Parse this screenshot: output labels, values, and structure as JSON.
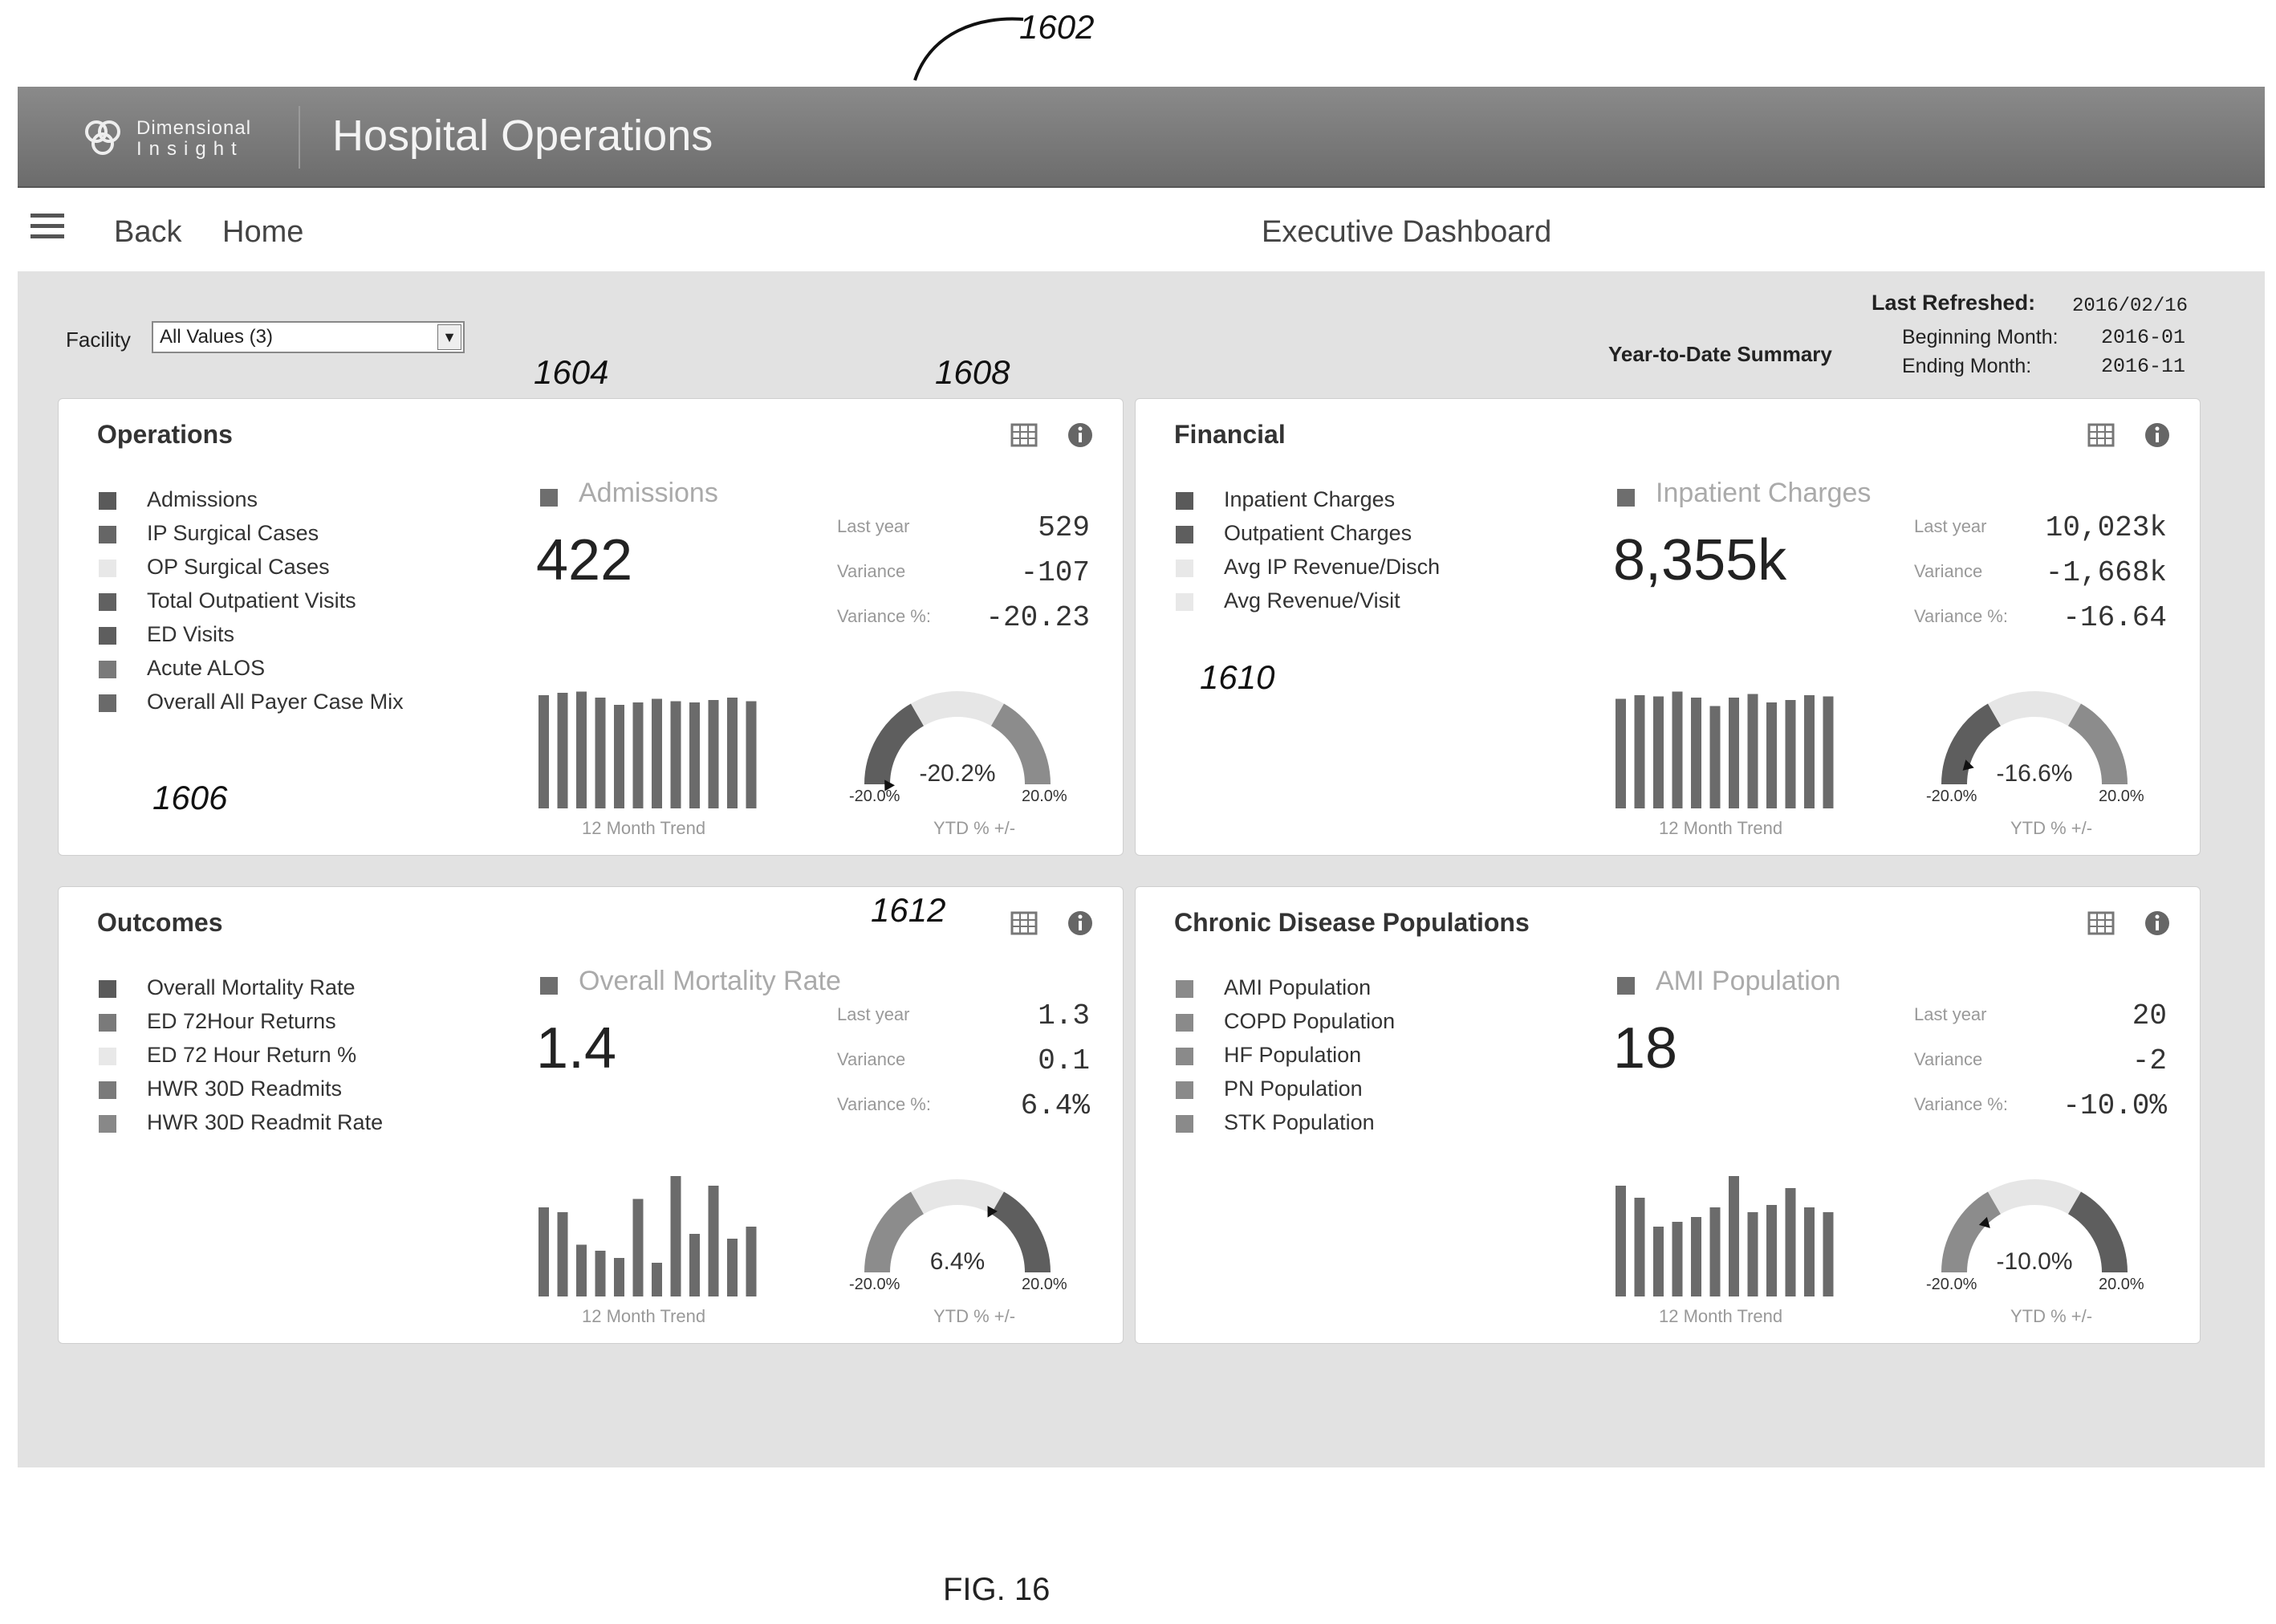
{
  "callouts": {
    "c1602": "1602",
    "c1604": "1604",
    "c1606": "1606",
    "c1608": "1608",
    "c1610": "1610",
    "c1612": "1612"
  },
  "figure_label": "FIG. 16",
  "header": {
    "logo_line1": "Dimensional",
    "logo_line2": "Insight",
    "app_title": "Hospital Operations"
  },
  "nav": {
    "back": "Back",
    "home": "Home",
    "page_title": "Executive Dashboard"
  },
  "filters": {
    "facility_label": "Facility",
    "facility_value": "All Values (3)"
  },
  "summary": {
    "title": "Year-to-Date Summary",
    "last_refreshed_label": "Last Refreshed:",
    "last_refreshed": "2016/02/16",
    "beginning_label": "Beginning Month:",
    "beginning": "2016-01",
    "ending_label": "Ending Month:",
    "ending": "2016-11"
  },
  "common": {
    "last_year_label": "Last year",
    "variance_label": "Variance",
    "variance_pct_label": "Variance %:",
    "trend_caption": "12 Month Trend",
    "ytd_caption": "YTD % +/-",
    "gauge_min": "-20.0%",
    "gauge_max": "20.0%",
    "table_icon": "table-icon",
    "info_icon": "info-icon"
  },
  "cards": [
    {
      "title": "Operations",
      "legend": [
        "Admissions",
        "IP Surgical Cases",
        "OP Surgical Cases",
        "Total Outpatient Visits",
        "ED Visits",
        "Acute ALOS",
        "Overall All Payer Case Mix"
      ],
      "legend_colors": [
        "#5a5a5a",
        "#666666",
        "#e8e8e8",
        "#616161",
        "#5e5e5e",
        "#7a7a7a",
        "#6a6a6a"
      ],
      "selected": "Admissions",
      "value": "422",
      "last_year": "529",
      "variance": "-107",
      "variance_pct": "-20.23",
      "ytd": "-20.2%",
      "ytd_value": -20.2,
      "trend": [
        0.94,
        0.96,
        0.97,
        0.92,
        0.86,
        0.88,
        0.91,
        0.89,
        0.88,
        0.9,
        0.92,
        0.89
      ],
      "gauge_style": "neg"
    },
    {
      "title": "Financial",
      "legend": [
        "Inpatient Charges",
        "Outpatient Charges",
        "Avg IP Revenue/Disch",
        "Avg Revenue/Visit"
      ],
      "legend_colors": [
        "#5a5a5a",
        "#5e5e5e",
        "#e8e8e8",
        "#e8e8e8"
      ],
      "selected": "Inpatient Charges",
      "value": "8,355k",
      "last_year": "10,023k",
      "variance": "-1,668k",
      "variance_pct": "-16.64",
      "ytd": "-16.6%",
      "ytd_value": -16.6,
      "trend": [
        0.91,
        0.94,
        0.93,
        0.97,
        0.92,
        0.85,
        0.92,
        0.95,
        0.88,
        0.9,
        0.94,
        0.93
      ],
      "gauge_style": "neg"
    },
    {
      "title": "Outcomes",
      "legend": [
        "Overall Mortality Rate",
        "ED 72Hour Returns",
        "ED 72 Hour Return %",
        "HWR 30D Readmits",
        "HWR 30D Readmit Rate"
      ],
      "legend_colors": [
        "#5a5a5a",
        "#7a7a7a",
        "#e8e8e8",
        "#7a7a7a",
        "#888888"
      ],
      "selected": "Overall Mortality Rate",
      "value": "1.4",
      "last_year": "1.3",
      "variance": "0.1",
      "variance_pct": "6.4%",
      "ytd": "6.4%",
      "ytd_value": 6.4,
      "trend": [
        0.74,
        0.7,
        0.43,
        0.38,
        0.32,
        0.81,
        0.28,
        1.0,
        0.52,
        0.92,
        0.48,
        0.58
      ],
      "gauge_style": "pos"
    },
    {
      "title": "Chronic Disease Populations",
      "legend": [
        "AMI Population",
        "COPD Population",
        "HF Population",
        "PN Population",
        "STK Population"
      ],
      "legend_colors": [
        "#8a8a8a",
        "#8a8a8a",
        "#8a8a8a",
        "#8a8a8a",
        "#8a8a8a"
      ],
      "selected": "AMI Population",
      "value": "18",
      "last_year": "20",
      "variance": "-2",
      "variance_pct": "-10.0%",
      "ytd": "-10.0%",
      "ytd_value": -10.0,
      "trend": [
        0.92,
        0.82,
        0.58,
        0.62,
        0.66,
        0.74,
        1.0,
        0.7,
        0.76,
        0.9,
        0.74,
        0.7
      ],
      "gauge_style": "pos"
    }
  ]
}
